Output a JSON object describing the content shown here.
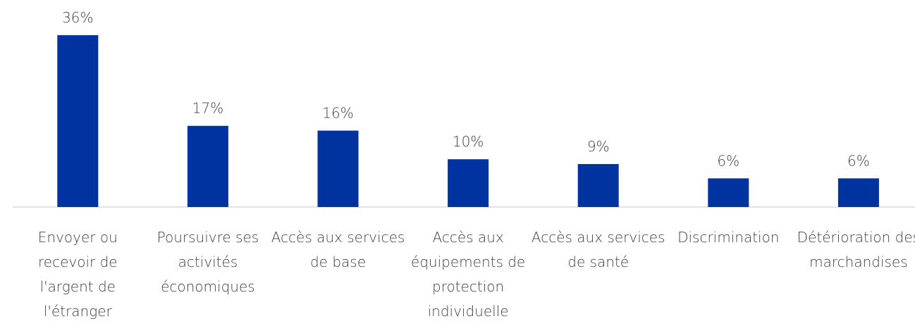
{
  "chart_data": {
    "type": "bar",
    "categories": [
      "Envoyer ou recevoir de l'argent de l'étranger",
      "Poursuivre ses activités économiques",
      "Accès aux services de base",
      "Accès aux équipements de protection individuelle",
      "Accès aux services de santé",
      "Discrimination",
      "Détérioration des marchandises"
    ],
    "values": [
      36,
      17,
      16,
      10,
      9,
      6,
      6
    ],
    "value_labels": [
      "36%",
      "17%",
      "16%",
      "10%",
      "9%",
      "6%",
      "6%"
    ],
    "color": "#0033a0"
  }
}
